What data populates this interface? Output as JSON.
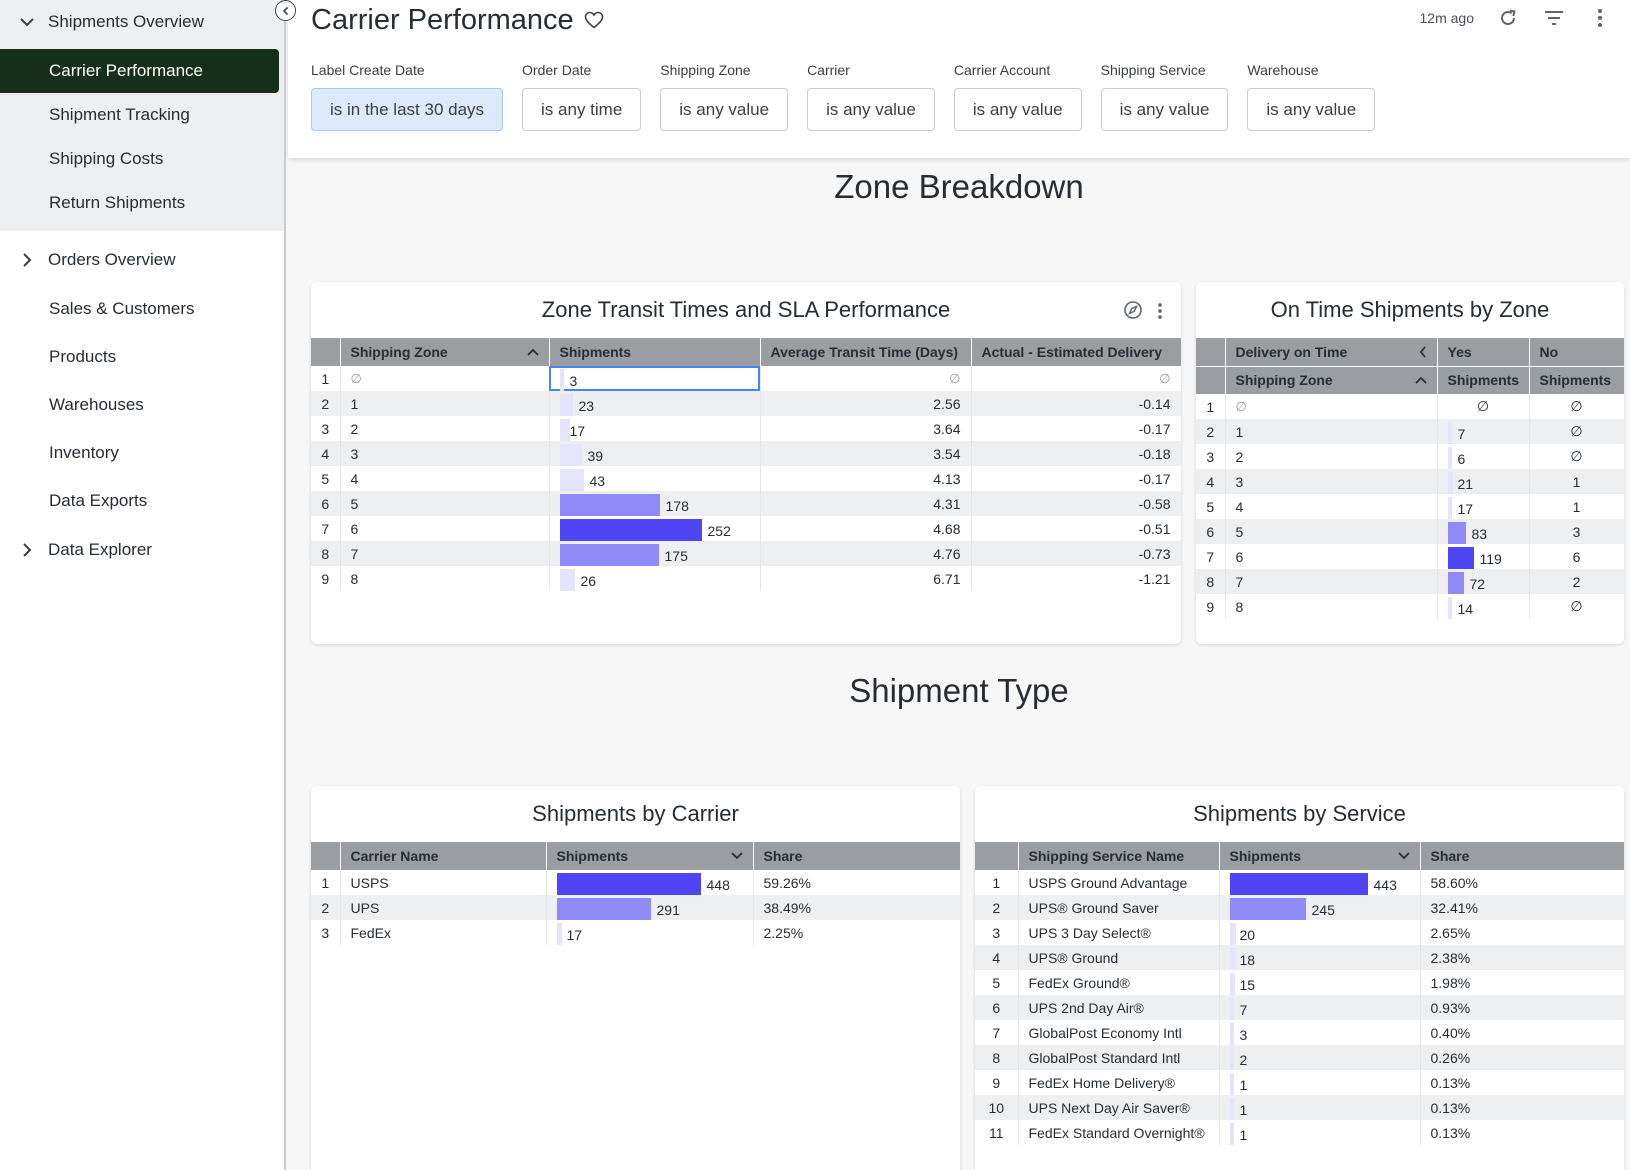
{
  "sidebar": {
    "groups": [
      {
        "label": "Shipments Overview",
        "expanded": true,
        "children": [
          {
            "label": "Carrier Performance",
            "active": true
          },
          {
            "label": "Shipment Tracking"
          },
          {
            "label": "Shipping Costs"
          },
          {
            "label": "Return Shipments"
          }
        ]
      },
      {
        "label": "Orders Overview",
        "expanded": false
      }
    ],
    "items": [
      "Sales & Customers",
      "Products",
      "Warehouses",
      "Inventory",
      "Data Exports"
    ],
    "explorer": "Data Explorer"
  },
  "header": {
    "title": "Carrier Performance",
    "updated": "12m ago",
    "filters": [
      {
        "label": "Label Create Date",
        "value": "is in the last 30 days",
        "active": true
      },
      {
        "label": "Order Date",
        "value": "is any time"
      },
      {
        "label": "Shipping Zone",
        "value": "is any value"
      },
      {
        "label": "Carrier",
        "value": "is any value"
      },
      {
        "label": "Carrier Account",
        "value": "is any value"
      },
      {
        "label": "Shipping Service",
        "value": "is any value"
      },
      {
        "label": "Warehouse",
        "value": "is any value"
      }
    ]
  },
  "sections": {
    "zone": "Zone Breakdown",
    "type": "Shipment Type"
  },
  "colors": {
    "bar_max": "#4f45f5",
    "bar_mid": "#8f8af7",
    "bar_low": "#e6e4fd",
    "active_nav": "#17301d"
  },
  "zone_table": {
    "title": "Zone Transit Times and SLA Performance",
    "headers": [
      "Shipping Zone",
      "Shipments",
      "Average Transit Time (Days)",
      "Actual - Estimated Delivery"
    ],
    "null_symbol": "∅",
    "rows": [
      {
        "i": "1",
        "zone": "∅",
        "shipments": 3,
        "avg": "∅",
        "diff": "∅"
      },
      {
        "i": "2",
        "zone": "1",
        "shipments": 23,
        "avg": "2.56",
        "diff": "-0.14"
      },
      {
        "i": "3",
        "zone": "2",
        "shipments": 17,
        "avg": "3.64",
        "diff": "-0.17"
      },
      {
        "i": "4",
        "zone": "3",
        "shipments": 39,
        "avg": "3.54",
        "diff": "-0.18"
      },
      {
        "i": "5",
        "zone": "4",
        "shipments": 43,
        "avg": "4.13",
        "diff": "-0.17"
      },
      {
        "i": "6",
        "zone": "5",
        "shipments": 178,
        "avg": "4.31",
        "diff": "-0.58"
      },
      {
        "i": "7",
        "zone": "6",
        "shipments": 252,
        "avg": "4.68",
        "diff": "-0.51"
      },
      {
        "i": "8",
        "zone": "7",
        "shipments": 175,
        "avg": "4.76",
        "diff": "-0.73"
      },
      {
        "i": "9",
        "zone": "8",
        "shipments": 26,
        "avg": "6.71",
        "diff": "-1.21"
      }
    ]
  },
  "ontime_table": {
    "title": "On Time Shipments by Zone",
    "pivot_label": "Delivery on Time",
    "pivot_yes": "Yes",
    "pivot_no": "No",
    "headers": [
      "Shipping Zone",
      "Shipments",
      "Shipments"
    ],
    "rows": [
      {
        "i": "1",
        "zone": "∅",
        "yes": "∅",
        "no": "∅"
      },
      {
        "i": "2",
        "zone": "1",
        "yes": "7",
        "no": "∅"
      },
      {
        "i": "3",
        "zone": "2",
        "yes": "6",
        "no": "∅"
      },
      {
        "i": "4",
        "zone": "3",
        "yes": "21",
        "no": "1"
      },
      {
        "i": "5",
        "zone": "4",
        "yes": "17",
        "no": "1"
      },
      {
        "i": "6",
        "zone": "5",
        "yes": "83",
        "no": "3"
      },
      {
        "i": "7",
        "zone": "6",
        "yes": "119",
        "no": "6"
      },
      {
        "i": "8",
        "zone": "7",
        "yes": "72",
        "no": "2"
      },
      {
        "i": "9",
        "zone": "8",
        "yes": "14",
        "no": "∅"
      }
    ]
  },
  "carrier_table": {
    "title": "Shipments by Carrier",
    "headers": [
      "Carrier Name",
      "Shipments",
      "Share"
    ],
    "rows": [
      {
        "i": "1",
        "name": "USPS",
        "shipments": 448,
        "share": "59.26%"
      },
      {
        "i": "2",
        "name": "UPS",
        "shipments": 291,
        "share": "38.49%"
      },
      {
        "i": "3",
        "name": "FedEx",
        "shipments": 17,
        "share": "2.25%"
      }
    ]
  },
  "service_table": {
    "title": "Shipments by Service",
    "headers": [
      "Shipping Service Name",
      "Shipments",
      "Share"
    ],
    "rows": [
      {
        "i": "1",
        "name": "USPS Ground Advantage",
        "shipments": 443,
        "share": "58.60%"
      },
      {
        "i": "2",
        "name": "UPS® Ground Saver",
        "shipments": 245,
        "share": "32.41%"
      },
      {
        "i": "3",
        "name": "UPS 3 Day Select®",
        "shipments": 20,
        "share": "2.65%"
      },
      {
        "i": "4",
        "name": "UPS® Ground",
        "shipments": 18,
        "share": "2.38%"
      },
      {
        "i": "5",
        "name": "FedEx Ground®",
        "shipments": 15,
        "share": "1.98%"
      },
      {
        "i": "6",
        "name": "UPS 2nd Day Air®",
        "shipments": 7,
        "share": "0.93%"
      },
      {
        "i": "7",
        "name": "GlobalPost Economy Intl",
        "shipments": 3,
        "share": "0.40%"
      },
      {
        "i": "8",
        "name": "GlobalPost Standard Intl",
        "shipments": 2,
        "share": "0.26%"
      },
      {
        "i": "9",
        "name": "FedEx Home Delivery®",
        "shipments": 1,
        "share": "0.13%"
      },
      {
        "i": "10",
        "name": "UPS Next Day Air Saver®",
        "shipments": 1,
        "share": "0.13%"
      },
      {
        "i": "11",
        "name": "FedEx Standard Overnight®",
        "shipments": 1,
        "share": "0.13%"
      }
    ]
  }
}
